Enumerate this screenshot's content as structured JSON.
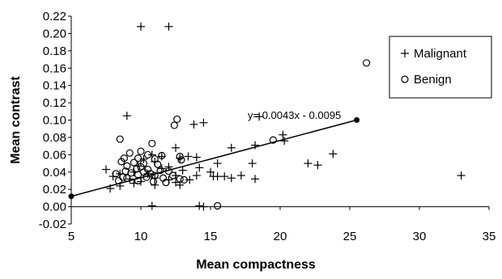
{
  "chart_data": {
    "type": "scatter",
    "title": "",
    "xlabel": "Mean compactness",
    "ylabel": "Mean contrast",
    "xlim": [
      5,
      35
    ],
    "ylim": [
      -0.02,
      0.22
    ],
    "x_ticks": [
      "5",
      "10",
      "15",
      "20",
      "25",
      "30",
      "35"
    ],
    "y_ticks": [
      "-0.02",
      "0.00",
      "0.02",
      "0.04",
      "0.06",
      "0.08",
      "0.10",
      "0.12",
      "0.14",
      "0.16",
      "0.18",
      "0.20",
      "0.22"
    ],
    "grid": false,
    "legend_position": "top-right",
    "series": [
      {
        "name": "Malignant",
        "marker": "plus",
        "points": [
          [
            10.0,
            0.208
          ],
          [
            12.0,
            0.208
          ],
          [
            9.0,
            0.105
          ],
          [
            18.5,
            0.104
          ],
          [
            14.5,
            0.097
          ],
          [
            13.8,
            0.095
          ],
          [
            20.2,
            0.083
          ],
          [
            20.3,
            0.076
          ],
          [
            18.2,
            0.071
          ],
          [
            16.5,
            0.068
          ],
          [
            12.5,
            0.068
          ],
          [
            23.8,
            0.061
          ],
          [
            13.4,
            0.058
          ],
          [
            11.5,
            0.058
          ],
          [
            10.8,
            0.06
          ],
          [
            12.8,
            0.056
          ],
          [
            14.0,
            0.057
          ],
          [
            10.2,
            0.055
          ],
          [
            11.0,
            0.052
          ],
          [
            15.5,
            0.05
          ],
          [
            18.0,
            0.05
          ],
          [
            22.0,
            0.05
          ],
          [
            22.7,
            0.048
          ],
          [
            9.8,
            0.047
          ],
          [
            12.0,
            0.046
          ],
          [
            14.2,
            0.045
          ],
          [
            7.5,
            0.043
          ],
          [
            11.5,
            0.044
          ],
          [
            13.0,
            0.042
          ],
          [
            15.0,
            0.04
          ],
          [
            9.5,
            0.04
          ],
          [
            8.5,
            0.038
          ],
          [
            10.5,
            0.038
          ],
          [
            12.5,
            0.036
          ],
          [
            14.0,
            0.036
          ],
          [
            15.5,
            0.035
          ],
          [
            17.2,
            0.036
          ],
          [
            15.2,
            0.035
          ],
          [
            16.0,
            0.035
          ],
          [
            33.0,
            0.036
          ],
          [
            8.0,
            0.035
          ],
          [
            9.2,
            0.032
          ],
          [
            11.0,
            0.033
          ],
          [
            12.0,
            0.031
          ],
          [
            13.5,
            0.031
          ],
          [
            16.5,
            0.033
          ],
          [
            18.2,
            0.032
          ],
          [
            10.0,
            0.029
          ],
          [
            12.5,
            0.028
          ],
          [
            9.5,
            0.027
          ],
          [
            8.5,
            0.024
          ],
          [
            11.0,
            0.025
          ],
          [
            12.8,
            0.025
          ],
          [
            7.8,
            0.021
          ],
          [
            10.8,
            0.001
          ],
          [
            14.2,
            0.001
          ],
          [
            14.5,
            0.0
          ]
        ]
      },
      {
        "name": "Benign",
        "marker": "circle",
        "points": [
          [
            26.2,
            0.166
          ],
          [
            12.6,
            0.101
          ],
          [
            12.4,
            0.094
          ],
          [
            19.5,
            0.077
          ],
          [
            8.5,
            0.078
          ],
          [
            10.8,
            0.073
          ],
          [
            10.0,
            0.064
          ],
          [
            9.2,
            0.062
          ],
          [
            10.5,
            0.06
          ],
          [
            11.5,
            0.059
          ],
          [
            12.8,
            0.058
          ],
          [
            8.8,
            0.056
          ],
          [
            9.8,
            0.056
          ],
          [
            11.0,
            0.055
          ],
          [
            12.9,
            0.054
          ],
          [
            8.6,
            0.052
          ],
          [
            9.5,
            0.051
          ],
          [
            10.2,
            0.05
          ],
          [
            11.2,
            0.049
          ],
          [
            9.0,
            0.047
          ],
          [
            10.0,
            0.046
          ],
          [
            9.7,
            0.044
          ],
          [
            10.5,
            0.043
          ],
          [
            11.4,
            0.042
          ],
          [
            12.0,
            0.041
          ],
          [
            8.9,
            0.041
          ],
          [
            10.2,
            0.04
          ],
          [
            9.3,
            0.039
          ],
          [
            10.7,
            0.038
          ],
          [
            8.2,
            0.038
          ],
          [
            9.8,
            0.037
          ],
          [
            11.0,
            0.036
          ],
          [
            12.3,
            0.036
          ],
          [
            8.7,
            0.034
          ],
          [
            10.4,
            0.034
          ],
          [
            9.0,
            0.033
          ],
          [
            11.6,
            0.033
          ],
          [
            12.8,
            0.032
          ],
          [
            13.1,
            0.031
          ],
          [
            8.4,
            0.03
          ],
          [
            9.8,
            0.03
          ],
          [
            10.9,
            0.029
          ],
          [
            11.8,
            0.028
          ],
          [
            15.5,
            0.001
          ]
        ]
      }
    ],
    "trendline": {
      "equation": "y= 0.0043x - 0.0095",
      "x_start": 5,
      "x_end": 25.5,
      "slope": 0.0043,
      "intercept": -0.0095
    }
  }
}
